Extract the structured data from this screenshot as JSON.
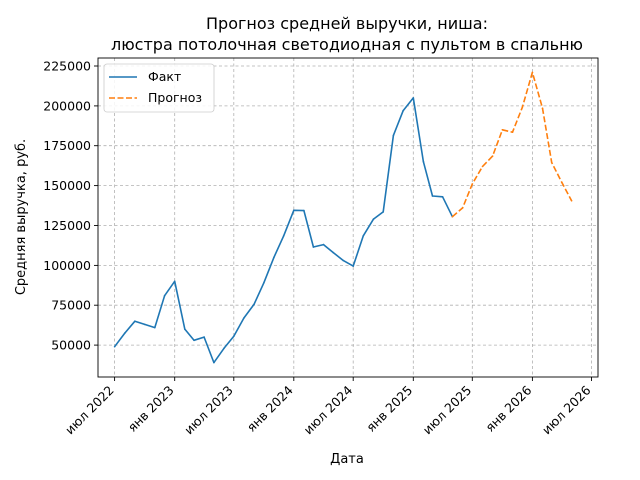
{
  "chart_data": {
    "type": "line",
    "title_lines": [
      "Прогноз средней выручки, ниша:",
      "люстра потолочная светодиодная с пультом в спальню"
    ],
    "xlabel": "Дата",
    "ylabel": "Средняя выручка, руб.",
    "x_ticks": [
      {
        "date": "2022-07-01",
        "label": "июл 2022"
      },
      {
        "date": "2023-01-01",
        "label": "янв 2023"
      },
      {
        "date": "2023-07-01",
        "label": "июл 2023"
      },
      {
        "date": "2024-01-01",
        "label": "янв 2024"
      },
      {
        "date": "2024-07-01",
        "label": "июл 2024"
      },
      {
        "date": "2025-01-01",
        "label": "янв 2025"
      },
      {
        "date": "2025-07-01",
        "label": "июл 2025"
      },
      {
        "date": "2026-01-01",
        "label": "янв 2026"
      },
      {
        "date": "2026-07-01",
        "label": "июл 2026"
      }
    ],
    "y_ticks": [
      {
        "value": 50000,
        "label": "50000"
      },
      {
        "value": 75000,
        "label": "75000"
      },
      {
        "value": 100000,
        "label": "100000"
      },
      {
        "value": 125000,
        "label": "125000"
      },
      {
        "value": 150000,
        "label": "150000"
      },
      {
        "value": 175000,
        "label": "175000"
      },
      {
        "value": 200000,
        "label": "200000"
      },
      {
        "value": 225000,
        "label": "225000"
      }
    ],
    "xlim": [
      "2022-05-11",
      "2026-07-21"
    ],
    "ylim": [
      30000,
      230000
    ],
    "grid": true,
    "legend_position": "top-left",
    "series": [
      {
        "name": "Факт",
        "color": "#1f77b4",
        "style": "solid",
        "points": [
          {
            "x": "2022-07-01",
            "y": 49000
          },
          {
            "x": "2022-08-01",
            "y": 57500
          },
          {
            "x": "2022-09-01",
            "y": 65000
          },
          {
            "x": "2022-10-01",
            "y": 63000
          },
          {
            "x": "2022-11-01",
            "y": 61000
          },
          {
            "x": "2022-12-01",
            "y": 81000
          },
          {
            "x": "2023-01-01",
            "y": 90000
          },
          {
            "x": "2023-02-01",
            "y": 60000
          },
          {
            "x": "2023-03-01",
            "y": 53000
          },
          {
            "x": "2023-04-01",
            "y": 55000
          },
          {
            "x": "2023-05-01",
            "y": 39000
          },
          {
            "x": "2023-06-01",
            "y": 48000
          },
          {
            "x": "2023-07-01",
            "y": 55500
          },
          {
            "x": "2023-08-01",
            "y": 67000
          },
          {
            "x": "2023-09-01",
            "y": 75500
          },
          {
            "x": "2023-10-01",
            "y": 89000
          },
          {
            "x": "2023-11-01",
            "y": 105000
          },
          {
            "x": "2023-12-01",
            "y": 118500
          },
          {
            "x": "2024-01-01",
            "y": 134500
          },
          {
            "x": "2024-02-01",
            "y": 134300
          },
          {
            "x": "2024-03-01",
            "y": 111500
          },
          {
            "x": "2024-04-01",
            "y": 113000
          },
          {
            "x": "2024-05-01",
            "y": 108000
          },
          {
            "x": "2024-06-01",
            "y": 103000
          },
          {
            "x": "2024-07-01",
            "y": 99500
          },
          {
            "x": "2024-08-01",
            "y": 118500
          },
          {
            "x": "2024-09-01",
            "y": 129000
          },
          {
            "x": "2024-10-01",
            "y": 133500
          },
          {
            "x": "2024-11-01",
            "y": 181500
          },
          {
            "x": "2024-12-01",
            "y": 197000
          },
          {
            "x": "2025-01-01",
            "y": 205000
          },
          {
            "x": "2025-02-01",
            "y": 165000
          },
          {
            "x": "2025-03-01",
            "y": 143500
          },
          {
            "x": "2025-04-01",
            "y": 143000
          },
          {
            "x": "2025-05-01",
            "y": 130500
          }
        ]
      },
      {
        "name": "Прогноз",
        "color": "#ff7f0e",
        "style": "dashed",
        "points": [
          {
            "x": "2025-05-01",
            "y": 130500
          },
          {
            "x": "2025-06-01",
            "y": 136000
          },
          {
            "x": "2025-07-01",
            "y": 151000
          },
          {
            "x": "2025-08-01",
            "y": 162000
          },
          {
            "x": "2025-09-01",
            "y": 168500
          },
          {
            "x": "2025-10-01",
            "y": 185000
          },
          {
            "x": "2025-11-01",
            "y": 183500
          },
          {
            "x": "2025-12-01",
            "y": 199000
          },
          {
            "x": "2026-01-01",
            "y": 221000
          },
          {
            "x": "2026-02-01",
            "y": 198500
          },
          {
            "x": "2026-03-01",
            "y": 164500
          },
          {
            "x": "2026-04-01",
            "y": 152000
          },
          {
            "x": "2026-05-01",
            "y": 140500
          }
        ]
      }
    ]
  }
}
